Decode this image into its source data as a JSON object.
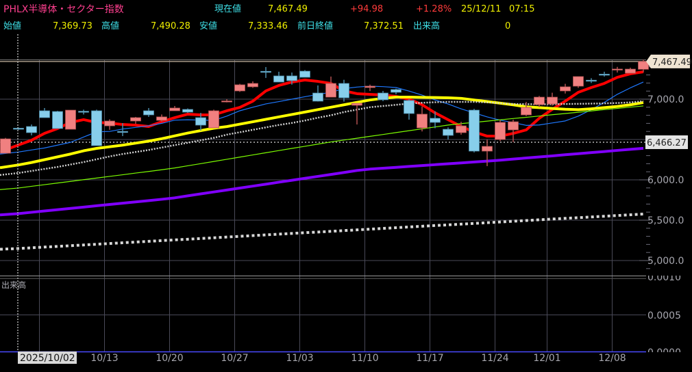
{
  "header": {
    "title": "PHLX半導体・セクター指数",
    "current_label": "現在値",
    "current_value": "7,467.49",
    "change": "+94.98",
    "change_pct": "+1.28%",
    "date": "25/12/11",
    "time": "07:15",
    "open_label": "始値",
    "open_value": "7,369.73",
    "high_label": "高値",
    "high_value": "7,490.28",
    "low_label": "安値",
    "low_value": "7,333.46",
    "prev_close_label": "前日終値",
    "prev_close_value": "7,372.51",
    "volume_label": "出来高",
    "volume_value": "0"
  },
  "colors": {
    "title": "#ff3f8f",
    "label": "#3fe0e8",
    "value": "#f0f000",
    "change": "#ff3b3b",
    "up_candle": "#f08080",
    "down_candle": "#87ceeb"
  },
  "chart_data": {
    "type": "candlestick",
    "dates": [
      "10/01",
      "10/02",
      "10/03",
      "10/06",
      "10/07",
      "10/08",
      "10/09",
      "10/10",
      "10/13",
      "10/14",
      "10/15",
      "10/16",
      "10/17",
      "10/20",
      "10/21",
      "10/22",
      "10/23",
      "10/24",
      "10/27",
      "10/28",
      "10/29",
      "10/30",
      "10/31",
      "11/03",
      "11/04",
      "11/05",
      "11/06",
      "11/07",
      "11/10",
      "11/11",
      "11/12",
      "11/13",
      "11/14",
      "11/17",
      "11/18",
      "11/19",
      "11/20",
      "11/21",
      "11/24",
      "11/25",
      "11/26",
      "11/28",
      "12/01",
      "12/02",
      "12/03",
      "12/04",
      "12/05",
      "12/08",
      "12/09",
      "12/10"
    ],
    "ohlc": [
      [
        6330,
        6520,
        6330,
        6508
      ],
      [
        6640,
        6650,
        6620,
        6636
      ],
      [
        6661,
        6686,
        6551,
        6585
      ],
      [
        6856,
        6890,
        6771,
        6771
      ],
      [
        6847,
        6855,
        6636,
        6636
      ],
      [
        6627,
        6864,
        6627,
        6864
      ],
      [
        6850,
        6870,
        6810,
        6845
      ],
      [
        6856,
        6870,
        6424,
        6424
      ],
      [
        6669,
        6750,
        6620,
        6729
      ],
      [
        6600,
        6703,
        6542,
        6590
      ],
      [
        6729,
        6780,
        6695,
        6771
      ],
      [
        6856,
        6890,
        6780,
        6805
      ],
      [
        6737,
        6810,
        6720,
        6780
      ],
      [
        6856,
        6915,
        6856,
        6890
      ],
      [
        6873,
        6885,
        6830,
        6839
      ],
      [
        6771,
        6830,
        6610,
        6678
      ],
      [
        6644,
        6870,
        6644,
        6856
      ],
      [
        6970,
        7000,
        6960,
        6978
      ],
      [
        7102,
        7190,
        7090,
        7178
      ],
      [
        7153,
        7220,
        7140,
        7195
      ],
      [
        7345,
        7398,
        7263,
        7335
      ],
      [
        7288,
        7340,
        7212,
        7212
      ],
      [
        7288,
        7330,
        7180,
        7229
      ],
      [
        7347,
        7360,
        7271,
        7271
      ],
      [
        7076,
        7170,
        6970,
        6975
      ],
      [
        7025,
        7280,
        7025,
        7195
      ],
      [
        7195,
        7240,
        6970,
        7017
      ],
      [
        6924,
        6949,
        6686,
        6949
      ],
      [
        7144,
        7180,
        7100,
        7161
      ],
      [
        7076,
        7102,
        6975,
        6992
      ],
      [
        7119,
        7130,
        7060,
        7085
      ],
      [
        6983,
        7000,
        6746,
        6822
      ],
      [
        6644,
        6910,
        6600,
        6814
      ],
      [
        6763,
        6850,
        6640,
        6712
      ],
      [
        6627,
        6650,
        6500,
        6551
      ],
      [
        6585,
        6720,
        6560,
        6669
      ],
      [
        6864,
        6880,
        6340,
        6356
      ],
      [
        6356,
        6500,
        6170,
        6415
      ],
      [
        6500,
        6740,
        6480,
        6712
      ],
      [
        6619,
        6746,
        6466,
        6720
      ],
      [
        6805,
        6966,
        6790,
        6898
      ],
      [
        6932,
        7040,
        6900,
        7025
      ],
      [
        6940,
        7080,
        6920,
        7025
      ],
      [
        7102,
        7190,
        7070,
        7153
      ],
      [
        7161,
        7280,
        7140,
        7280
      ],
      [
        7235,
        7260,
        7200,
        7225
      ],
      [
        7310,
        7340,
        7280,
        7305
      ],
      [
        7364,
        7400,
        7330,
        7373
      ],
      [
        7322,
        7390,
        7322,
        7372.51
      ],
      [
        7369.73,
        7490.28,
        7333.46,
        7467.49
      ]
    ],
    "moving_averages": [
      {
        "color": "#ff0000",
        "style": "solid-thick",
        "values": [
          6347,
          6432,
          6491,
          6576,
          6636,
          6712,
          6746,
          6712,
          6703,
          6686,
          6678,
          6661,
          6720,
          6771,
          6814,
          6805,
          6805,
          6856,
          6898,
          6975,
          7102,
          7170,
          7212,
          7237,
          7220,
          7195,
          7102,
          7068,
          7059,
          7051,
          7034,
          7000,
          6932,
          6830,
          6746,
          6661,
          6593,
          6542,
          6542,
          6576,
          6619,
          6763,
          6873,
          6975,
          7085,
          7144,
          7195,
          7271,
          7314,
          7339
        ]
      },
      {
        "color": "#1e78ff",
        "style": "solid-thin",
        "values": [
          6320,
          6345,
          6370,
          6395,
          6430,
          6465,
          6530,
          6595,
          6600,
          6630,
          6650,
          6670,
          6700,
          6740,
          6745,
          6740,
          6737,
          6790,
          6856,
          6900,
          6941,
          6970,
          7000,
          7030,
          7059,
          7085,
          7130,
          7150,
          7161,
          7155,
          7144,
          7100,
          7050,
          6990,
          6940,
          6880,
          6830,
          6780,
          6740,
          6710,
          6675,
          6680,
          6705,
          6730,
          6790,
          6870,
          6960,
          7060,
          7140,
          7212
        ]
      },
      {
        "color": "#ffff00",
        "style": "solid-thick",
        "values": [
          6150,
          6185,
          6215,
          6250,
          6285,
          6320,
          6360,
          6390,
          6410,
          6430,
          6455,
          6480,
          6510,
          6545,
          6580,
          6610,
          6640,
          6660,
          6690,
          6720,
          6750,
          6780,
          6810,
          6840,
          6870,
          6900,
          6930,
          6960,
          6990,
          7010,
          7025,
          7025,
          7022,
          7020,
          7017,
          7010,
          6990,
          6970,
          6950,
          6930,
          6905,
          6895,
          6885,
          6875,
          6870,
          6880,
          6895,
          6910,
          6930,
          6958
        ]
      },
      {
        "color": "#d0d0d0",
        "style": "dotted",
        "values": [
          6060,
          6085,
          6110,
          6135,
          6160,
          6190,
          6220,
          6255,
          6290,
          6320,
          6345,
          6370,
          6400,
          6430,
          6460,
          6490,
          6520,
          6560,
          6590,
          6620,
          6650,
          6680,
          6705,
          6735,
          6770,
          6800,
          6840,
          6870,
          6900,
          6915,
          6930,
          6945,
          6955,
          6962,
          6966,
          6966,
          6966,
          6960,
          6950,
          6940,
          6938,
          6936,
          6938,
          6940,
          6942,
          6945,
          6948,
          6952,
          6960,
          6975
        ]
      },
      {
        "color": "#7cfc00",
        "style": "solid-thin",
        "values": [
          5879,
          5899,
          5920,
          5940,
          5961,
          5981,
          6002,
          6022,
          6043,
          6063,
          6084,
          6104,
          6125,
          6147,
          6174,
          6201,
          6228,
          6255,
          6282,
          6309,
          6336,
          6363,
          6390,
          6416,
          6443,
          6470,
          6493,
          6516,
          6539,
          6562,
          6586,
          6609,
          6632,
          6655,
          6679,
          6697,
          6712,
          6728,
          6744,
          6760,
          6775,
          6791,
          6807,
          6822,
          6838,
          6854,
          6870,
          6885,
          6901,
          6916
        ]
      },
      {
        "color": "#8000ff",
        "style": "solid-thick",
        "values": [
          5566,
          5582,
          5598,
          5614,
          5630,
          5646,
          5662,
          5679,
          5695,
          5711,
          5727,
          5743,
          5759,
          5777,
          5802,
          5826,
          5850,
          5874,
          5898,
          5922,
          5946,
          5971,
          5995,
          6019,
          6043,
          6067,
          6091,
          6116,
          6133,
          6144,
          6155,
          6166,
          6177,
          6188,
          6199,
          6210,
          6221,
          6232,
          6244,
          6257,
          6271,
          6284,
          6297,
          6311,
          6324,
          6338,
          6351,
          6365,
          6378,
          6391
        ]
      },
      {
        "color": "#d8d8d8",
        "style": "dotted-thick",
        "values": [
          5140,
          5149,
          5158,
          5167,
          5175,
          5184,
          5193,
          5202,
          5211,
          5220,
          5229,
          5238,
          5247,
          5256,
          5264,
          5273,
          5282,
          5291,
          5300,
          5309,
          5318,
          5327,
          5336,
          5345,
          5353,
          5362,
          5371,
          5380,
          5389,
          5398,
          5407,
          5416,
          5425,
          5434,
          5442,
          5451,
          5460,
          5469,
          5478,
          5487,
          5496,
          5505,
          5514,
          5523,
          5531,
          5540,
          5549,
          5558,
          5567,
          5576
        ]
      }
    ],
    "y_ticks": [
      {
        "value": 7000,
        "label": "7,000.0"
      },
      {
        "value": 6000,
        "label": "6,000.0"
      },
      {
        "value": 5500,
        "label": "5,500.0"
      },
      {
        "value": 5000,
        "label": "5,000.0"
      }
    ],
    "y_gridlines": [
      7000,
      6500,
      6000,
      5500,
      5000
    ],
    "current_marker": {
      "value": 7467.49,
      "label": "7,467.49"
    },
    "reference_line": {
      "value": 6466.27,
      "label": "6,466.27"
    },
    "x_ticks": [
      {
        "date": "10/13",
        "label": "10/13"
      },
      {
        "date": "10/20",
        "label": "10/20"
      },
      {
        "date": "10/27",
        "label": "10/27"
      },
      {
        "date": "11/03",
        "label": "11/03"
      },
      {
        "date": "11/10",
        "label": "11/10"
      },
      {
        "date": "11/17",
        "label": "11/17"
      },
      {
        "date": "11/24",
        "label": "11/24"
      },
      {
        "date": "12/01",
        "label": "12/01"
      },
      {
        "date": "12/08",
        "label": "12/08"
      }
    ],
    "cursor": {
      "date": "10/02",
      "label": "2025/10/02"
    },
    "volume_panel": {
      "label": "出来高",
      "ticks": [
        "0.0010",
        "0.0005",
        "0.0000"
      ]
    }
  }
}
